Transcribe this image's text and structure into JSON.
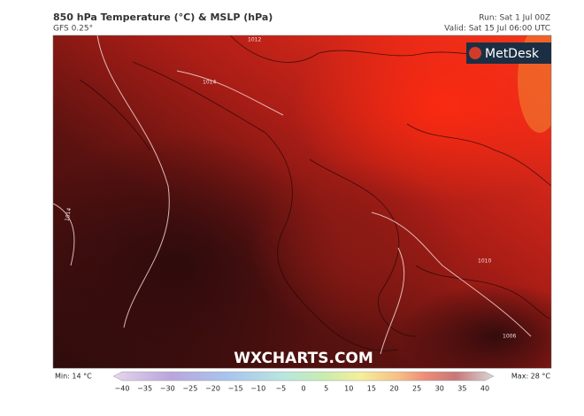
{
  "header": {
    "title": "850 hPa Temperature (°C) & MSLP (hPa)",
    "model": "GFS 0.25°",
    "run": "Run: Sat 1 Jul 00Z",
    "valid": "Valid: Sat 15 Jul 06:00 UTC"
  },
  "map": {
    "logo": "MetDesk",
    "watermark": "WXCHARTS.COM",
    "isobar_labels": [
      "1014",
      "1014",
      "1010",
      "1006",
      "1012"
    ]
  },
  "colorbar": {
    "min_label": "Min: 14 °C",
    "max_label": "Max: 28 °C",
    "ticks": [
      "−40",
      "−35",
      "−30",
      "−25",
      "−20",
      "−15",
      "−10",
      "−5",
      "0",
      "5",
      "10",
      "15",
      "20",
      "25",
      "30",
      "35",
      "40"
    ]
  }
}
